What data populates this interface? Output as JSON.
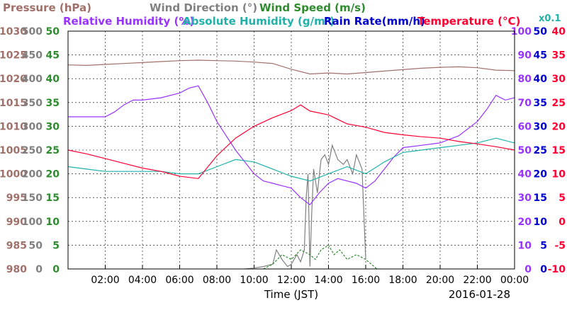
{
  "chart_data": {
    "type": "line",
    "date": "2016-01-28",
    "xlabel": "Time (JST)",
    "x_ticks": [
      "02:00",
      "04:00",
      "06:00",
      "08:00",
      "10:00",
      "12:00",
      "14:00",
      "16:00",
      "18:00",
      "20:00",
      "22:00",
      "00:00"
    ],
    "x_range_hours": [
      0,
      24
    ],
    "grid": true,
    "legend": [
      {
        "text": "Pressure (hPa)",
        "color": "#a0706a"
      },
      {
        "text": "Wind Direction (°)",
        "color": "#808080"
      },
      {
        "text": "Wind Speed (m/s)",
        "color": "#2e8b2e"
      },
      {
        "text": "Relative Humidity (%)",
        "color": "#9933ff"
      },
      {
        "text": "Absolute Humidity (g/m³)",
        "color": "#20b2aa"
      },
      {
        "text": "Rain Rate(mm/h)",
        "color": "#0000cc"
      },
      {
        "text": "Temperature (°C)",
        "color": "#ff0033"
      },
      {
        "text": "x0.1",
        "color": "#20b2aa"
      }
    ],
    "axes": {
      "pressure": {
        "min": 980,
        "max": 1030,
        "ticks": [
          "1030",
          "1025",
          "1020",
          "1015",
          "1010",
          "1005",
          "1000",
          "995",
          "990",
          "985",
          "980"
        ],
        "color": "#a0706a"
      },
      "wind_direction": {
        "min": 0,
        "max": 500,
        "ticks": [
          "500",
          "450",
          "400",
          "350",
          "300",
          "250",
          "200",
          "150",
          "100",
          "50",
          "0"
        ],
        "color": "#808080"
      },
      "wind_speed": {
        "min": 0,
        "max": 50,
        "ticks": [
          "50",
          "45",
          "40",
          "35",
          "30",
          "25",
          "20",
          "15",
          "10",
          "5",
          "0"
        ],
        "color": "#2e8b2e"
      },
      "relative_humidity": {
        "min": 0,
        "max": 100,
        "ticks": [
          "100",
          "90",
          "80",
          "70",
          "60",
          "50",
          "40",
          "30",
          "20",
          "10",
          "0"
        ],
        "color": "#9933ff"
      },
      "rain_rate": {
        "min": 0,
        "max": 50,
        "ticks": [
          "50",
          "45",
          "40",
          "35",
          "30",
          "25",
          "20",
          "15",
          "10",
          "5",
          "0"
        ],
        "color": "#0000cc"
      },
      "temperature": {
        "min": -10,
        "max": 40,
        "ticks": [
          "40",
          "35",
          "30",
          "25",
          "20",
          "15",
          "10",
          "5",
          "0",
          "-5",
          "-10"
        ],
        "color": "#ff0033"
      }
    },
    "series": [
      {
        "name": "Pressure (hPa)",
        "color": "#a0706a",
        "axis": "pressure",
        "x": [
          0,
          1,
          2,
          3,
          4,
          5,
          6,
          7,
          8,
          9,
          10,
          11,
          12,
          13,
          14,
          15,
          16,
          17,
          18,
          19,
          20,
          21,
          22,
          23,
          24
        ],
        "y": [
          1022.9,
          1022.8,
          1023.0,
          1023.2,
          1023.4,
          1023.6,
          1023.8,
          1023.9,
          1023.8,
          1023.7,
          1023.5,
          1023.2,
          1022.0,
          1021.0,
          1021.2,
          1021.0,
          1021.3,
          1021.6,
          1021.9,
          1022.2,
          1022.4,
          1022.5,
          1022.3,
          1021.8,
          1021.7
        ]
      },
      {
        "name": "Wind Direction (°)",
        "color": "#808080",
        "axis": "wind_direction",
        "x": [
          9.5,
          10,
          10.5,
          11,
          11.2,
          11.5,
          11.8,
          12,
          12.3,
          12.5,
          12.7,
          12.8,
          12.9,
          13.0,
          13.1,
          13.2,
          13.4,
          13.6,
          13.8,
          14.0,
          14.2,
          14.5,
          14.8,
          15.0,
          15.3,
          15.5,
          15.8,
          16.0
        ],
        "y": [
          0,
          2,
          5,
          10,
          40,
          20,
          5,
          10,
          30,
          15,
          40,
          150,
          200,
          5,
          120,
          210,
          160,
          230,
          240,
          220,
          260,
          230,
          220,
          230,
          200,
          240,
          210,
          20
        ]
      },
      {
        "name": "Wind Speed (m/s)",
        "color": "#2e8b2e",
        "axis": "wind_speed",
        "x": [
          10.5,
          11,
          11.5,
          12,
          12.5,
          13,
          13.3,
          13.6,
          14,
          14.3,
          14.6,
          15,
          15.5,
          16,
          16.3,
          16.6
        ],
        "y": [
          0,
          1,
          3,
          2,
          4,
          3,
          2,
          4,
          5,
          3,
          4,
          2,
          3,
          2,
          1,
          0
        ]
      },
      {
        "name": "Relative Humidity (%)",
        "color": "#9933ff",
        "axis": "relative_humidity",
        "x": [
          0,
          1,
          2,
          2.5,
          3,
          3.5,
          4,
          5,
          6,
          6.5,
          7,
          7.5,
          8,
          8.5,
          9,
          9.5,
          10,
          10.5,
          11,
          11.5,
          12,
          12.5,
          13,
          13.5,
          14,
          14.5,
          15,
          15.5,
          16,
          16.5,
          17,
          17.5,
          18,
          19,
          20,
          21,
          22,
          22.5,
          23,
          23.5,
          24
        ],
        "y": [
          64,
          64,
          64,
          66,
          69,
          71,
          71,
          72,
          74,
          76,
          77,
          70,
          62,
          56,
          50,
          45,
          40,
          37,
          36,
          35,
          34,
          30,
          27,
          32,
          36,
          38,
          37,
          36,
          34,
          37,
          42,
          47,
          51,
          52,
          53,
          56,
          62,
          67,
          73,
          71,
          72
        ]
      },
      {
        "name": "Absolute Humidity (g/m³)",
        "color": "#20b2aa",
        "axis": "relative_humidity",
        "x": [
          0,
          1,
          2,
          3,
          4,
          5,
          6,
          7,
          8,
          9,
          10,
          11,
          12,
          13,
          14,
          15,
          16,
          17,
          18,
          19,
          20,
          21,
          22,
          23,
          24
        ],
        "y": [
          43,
          42,
          41,
          41,
          41,
          41,
          40,
          40,
          43,
          46,
          45,
          42,
          39,
          37,
          40,
          43,
          40,
          45,
          49,
          50,
          51,
          52,
          53,
          55,
          53
        ]
      },
      {
        "name": "Temperature (°C)",
        "color": "#ff0033",
        "axis": "temperature",
        "x": [
          0,
          1,
          2,
          3,
          4,
          5,
          6,
          7,
          8,
          9,
          10,
          11,
          12,
          12.5,
          13,
          14,
          15,
          16,
          17,
          18,
          19,
          20,
          21,
          22,
          23,
          24
        ],
        "y": [
          15.0,
          14.2,
          13.2,
          12.2,
          11.2,
          10.5,
          9.5,
          9.0,
          13.8,
          17.5,
          20.0,
          21.8,
          23.3,
          24.5,
          23.2,
          22.4,
          20.5,
          19.8,
          18.7,
          18.2,
          17.8,
          17.5,
          16.8,
          16.3,
          15.7,
          15.0
        ]
      }
    ]
  }
}
